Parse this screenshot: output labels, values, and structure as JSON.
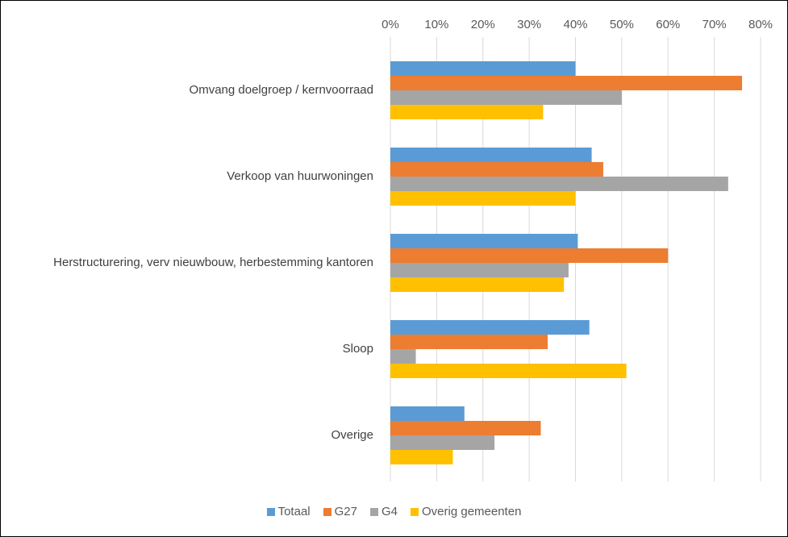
{
  "chart_data": {
    "type": "hbar",
    "categories": [
      "Omvang doelgroep / kernvoorraad",
      "Verkoop van huurwoningen",
      "Herstructurering, verv nieuwbouw, herbestemming kantoren",
      "Sloop",
      "Overige"
    ],
    "series": [
      {
        "name": "Totaal",
        "color": "#5b9bd5",
        "values": [
          40,
          43.5,
          40.5,
          43,
          16
        ]
      },
      {
        "name": "G27",
        "color": "#ed7d31",
        "values": [
          76,
          46,
          60,
          34,
          32.5
        ]
      },
      {
        "name": "G4",
        "color": "#a5a5a5",
        "values": [
          50,
          73,
          38.5,
          5.5,
          22.5
        ]
      },
      {
        "name": "Overig gemeenten",
        "color": "#ffc000",
        "values": [
          33,
          40,
          37.5,
          51,
          13.5
        ]
      }
    ],
    "xlim": [
      0,
      80
    ],
    "xticks": [
      {
        "value": 0,
        "label": "0%"
      },
      {
        "value": 10,
        "label": "10%"
      },
      {
        "value": 20,
        "label": "20%"
      },
      {
        "value": 30,
        "label": "30%"
      },
      {
        "value": 40,
        "label": "40%"
      },
      {
        "value": 50,
        "label": "50%"
      },
      {
        "value": 60,
        "label": "60%"
      },
      {
        "value": 70,
        "label": "70%"
      },
      {
        "value": 80,
        "label": "80%"
      }
    ],
    "grid": true,
    "legend": "bottom"
  }
}
